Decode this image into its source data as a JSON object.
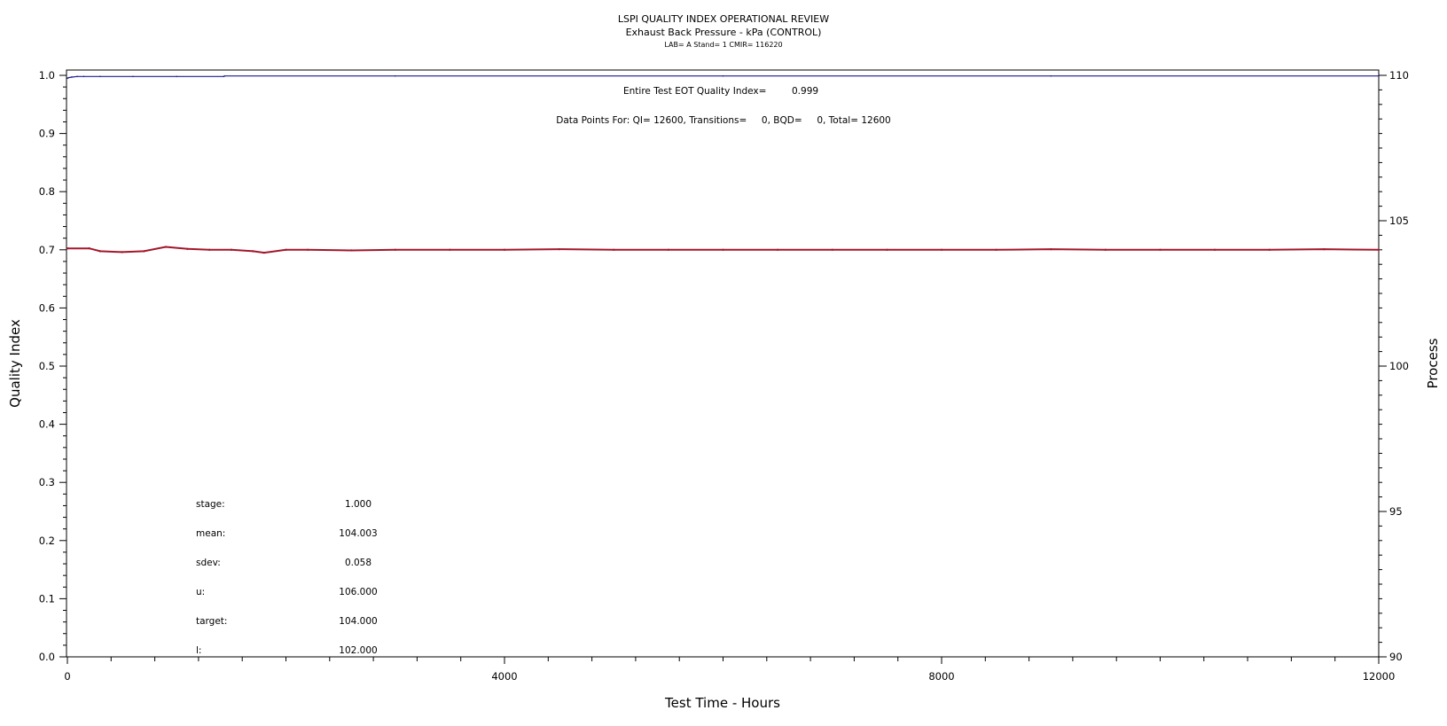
{
  "header": {
    "title": "LSPI QUALITY INDEX OPERATIONAL REVIEW",
    "subtitle": "Exhaust Back Pressure - kPa (CONTROL)",
    "subsubtitle": "LAB= A Stand= 1 CMIR= 116220"
  },
  "annotations": {
    "eot_label": "Entire Test EOT Quality Index=",
    "eot_value": "0.999",
    "datapoints": "Data Points For: QI= 12600, Transitions=     0, BQD=     0, Total= 12600"
  },
  "stats": [
    {
      "label": "stage:",
      "value": "1.000"
    },
    {
      "label": "mean:",
      "value": "104.003"
    },
    {
      "label": "sdev:",
      "value": "0.058"
    },
    {
      "label": "u:",
      "value": "106.000"
    },
    {
      "label": "target:",
      "value": "104.000"
    },
    {
      "label": "l:",
      "value": "102.000"
    }
  ],
  "chart_data": {
    "type": "line",
    "xlabel": "Test Time - Hours",
    "ylabel": "Quality Index",
    "y2label": "Process",
    "xlim": [
      0,
      12000
    ],
    "ylim": [
      0,
      1.0
    ],
    "y2lim": [
      90,
      110
    ],
    "x_ticks": [
      0,
      4000,
      8000,
      12000
    ],
    "x_tick_labels": [
      "0",
      "4000",
      "8000",
      "12000"
    ],
    "y_ticks": [
      0.0,
      0.1,
      0.2,
      0.3,
      0.4,
      0.5,
      0.6,
      0.7,
      0.8,
      0.9,
      1.0
    ],
    "y_tick_labels": [
      "0.0",
      "0.1",
      "0.2",
      "0.3",
      "0.4",
      "0.5",
      "0.6",
      "0.7",
      "0.8",
      "0.9",
      "1.0"
    ],
    "y2_ticks": [
      90,
      95,
      100,
      105,
      110
    ],
    "y2_tick_labels": [
      "90",
      "95",
      "100",
      "105",
      "110"
    ],
    "grid": false,
    "series": [
      {
        "axis": "left",
        "color": "#1c1c8c",
        "x": [
          0,
          10,
          40,
          90,
          150,
          300,
          600,
          1000,
          1430,
          1440,
          3000,
          6000,
          9000,
          12000
        ],
        "values": [
          0.995,
          0.996,
          0.997,
          0.998,
          0.998,
          0.998,
          0.998,
          0.998,
          0.998,
          0.999,
          0.999,
          0.999,
          0.999,
          0.999
        ]
      },
      {
        "axis": "right",
        "color": "#a3162a",
        "x": [
          0,
          200,
          300,
          500,
          700,
          900,
          1100,
          1300,
          1500,
          1700,
          1800,
          2000,
          2200,
          2600,
          3000,
          3500,
          4000,
          4500,
          5000,
          5500,
          6000,
          6500,
          7000,
          7500,
          8000,
          8500,
          9000,
          9500,
          10000,
          10500,
          11000,
          11500,
          12000
        ],
        "values": [
          104.05,
          104.05,
          103.95,
          103.92,
          103.95,
          104.1,
          104.03,
          104.0,
          104.0,
          103.95,
          103.9,
          104.0,
          104.0,
          103.98,
          104.0,
          104.0,
          104.0,
          104.02,
          104.0,
          104.0,
          104.0,
          104.0,
          104.0,
          104.0,
          104.0,
          104.0,
          104.02,
          104.0,
          104.0,
          104.0,
          104.0,
          104.02,
          104.0
        ]
      }
    ]
  }
}
